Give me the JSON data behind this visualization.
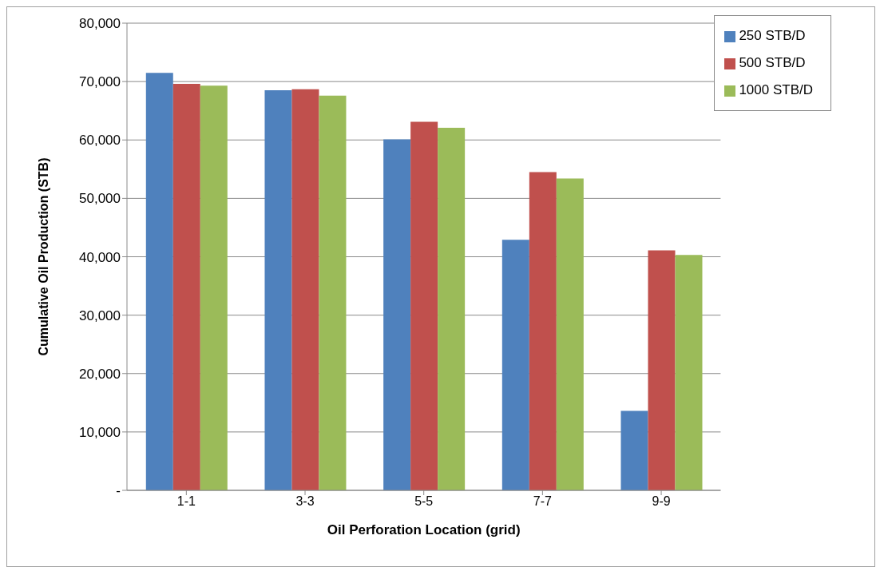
{
  "chart_data": {
    "type": "bar",
    "xlabel": "Oil Perforation Location (grid)",
    "ylabel": "Cumulative Oil Production (STB)",
    "categories": [
      "1-1",
      "3-3",
      "5-5",
      "7-7",
      "9-9"
    ],
    "series": [
      {
        "name": "250 STB/D",
        "color": "#4f81bd",
        "values": [
          71500,
          68500,
          60100,
          42900,
          13600
        ]
      },
      {
        "name": "500 STB/D",
        "color": "#c0504d",
        "values": [
          69600,
          68700,
          63100,
          54500,
          41100
        ]
      },
      {
        "name": "1000 STB/D",
        "color": "#9bbb59",
        "values": [
          69300,
          67600,
          62100,
          53400,
          40300
        ]
      }
    ],
    "ylim": [
      0,
      80000
    ],
    "yticks": [
      {
        "value": 0,
        "label": "-"
      },
      {
        "value": 10000,
        "label": "10,000"
      },
      {
        "value": 20000,
        "label": "20,000"
      },
      {
        "value": 30000,
        "label": "30,000"
      },
      {
        "value": 40000,
        "label": "40,000"
      },
      {
        "value": 50000,
        "label": "50,000"
      },
      {
        "value": 60000,
        "label": "60,000"
      },
      {
        "value": 70000,
        "label": "70,000"
      },
      {
        "value": 80000,
        "label": "80,000"
      }
    ],
    "grid": "y",
    "legend": "top right"
  }
}
